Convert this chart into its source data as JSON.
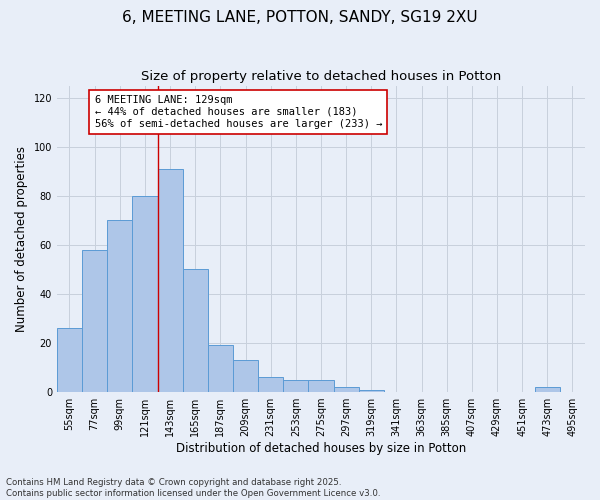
{
  "title": "6, MEETING LANE, POTTON, SANDY, SG19 2XU",
  "subtitle": "Size of property relative to detached houses in Potton",
  "xlabel": "Distribution of detached houses by size in Potton",
  "ylabel": "Number of detached properties",
  "categories": [
    "55sqm",
    "77sqm",
    "99sqm",
    "121sqm",
    "143sqm",
    "165sqm",
    "187sqm",
    "209sqm",
    "231sqm",
    "253sqm",
    "275sqm",
    "297sqm",
    "319sqm",
    "341sqm",
    "363sqm",
    "385sqm",
    "407sqm",
    "429sqm",
    "451sqm",
    "473sqm",
    "495sqm"
  ],
  "values": [
    26,
    58,
    70,
    80,
    91,
    50,
    19,
    13,
    6,
    5,
    5,
    2,
    1,
    0,
    0,
    0,
    0,
    0,
    0,
    2,
    0
  ],
  "bar_color": "#aec6e8",
  "bar_edge_color": "#5b9bd5",
  "property_line_color": "#cc0000",
  "annotation_text": "6 MEETING LANE: 129sqm\n← 44% of detached houses are smaller (183)\n56% of semi-detached houses are larger (233) →",
  "annotation_box_color": "#ffffff",
  "annotation_box_edge": "#cc0000",
  "ylim": [
    0,
    125
  ],
  "yticks": [
    0,
    20,
    40,
    60,
    80,
    100,
    120
  ],
  "grid_color": "#c8d0dc",
  "background_color": "#e8eef8",
  "footer_text": "Contains HM Land Registry data © Crown copyright and database right 2025.\nContains public sector information licensed under the Open Government Licence v3.0.",
  "title_fontsize": 11,
  "subtitle_fontsize": 9.5,
  "tick_fontsize": 7,
  "ylabel_fontsize": 8.5,
  "xlabel_fontsize": 8.5,
  "annot_fontsize": 7.5
}
